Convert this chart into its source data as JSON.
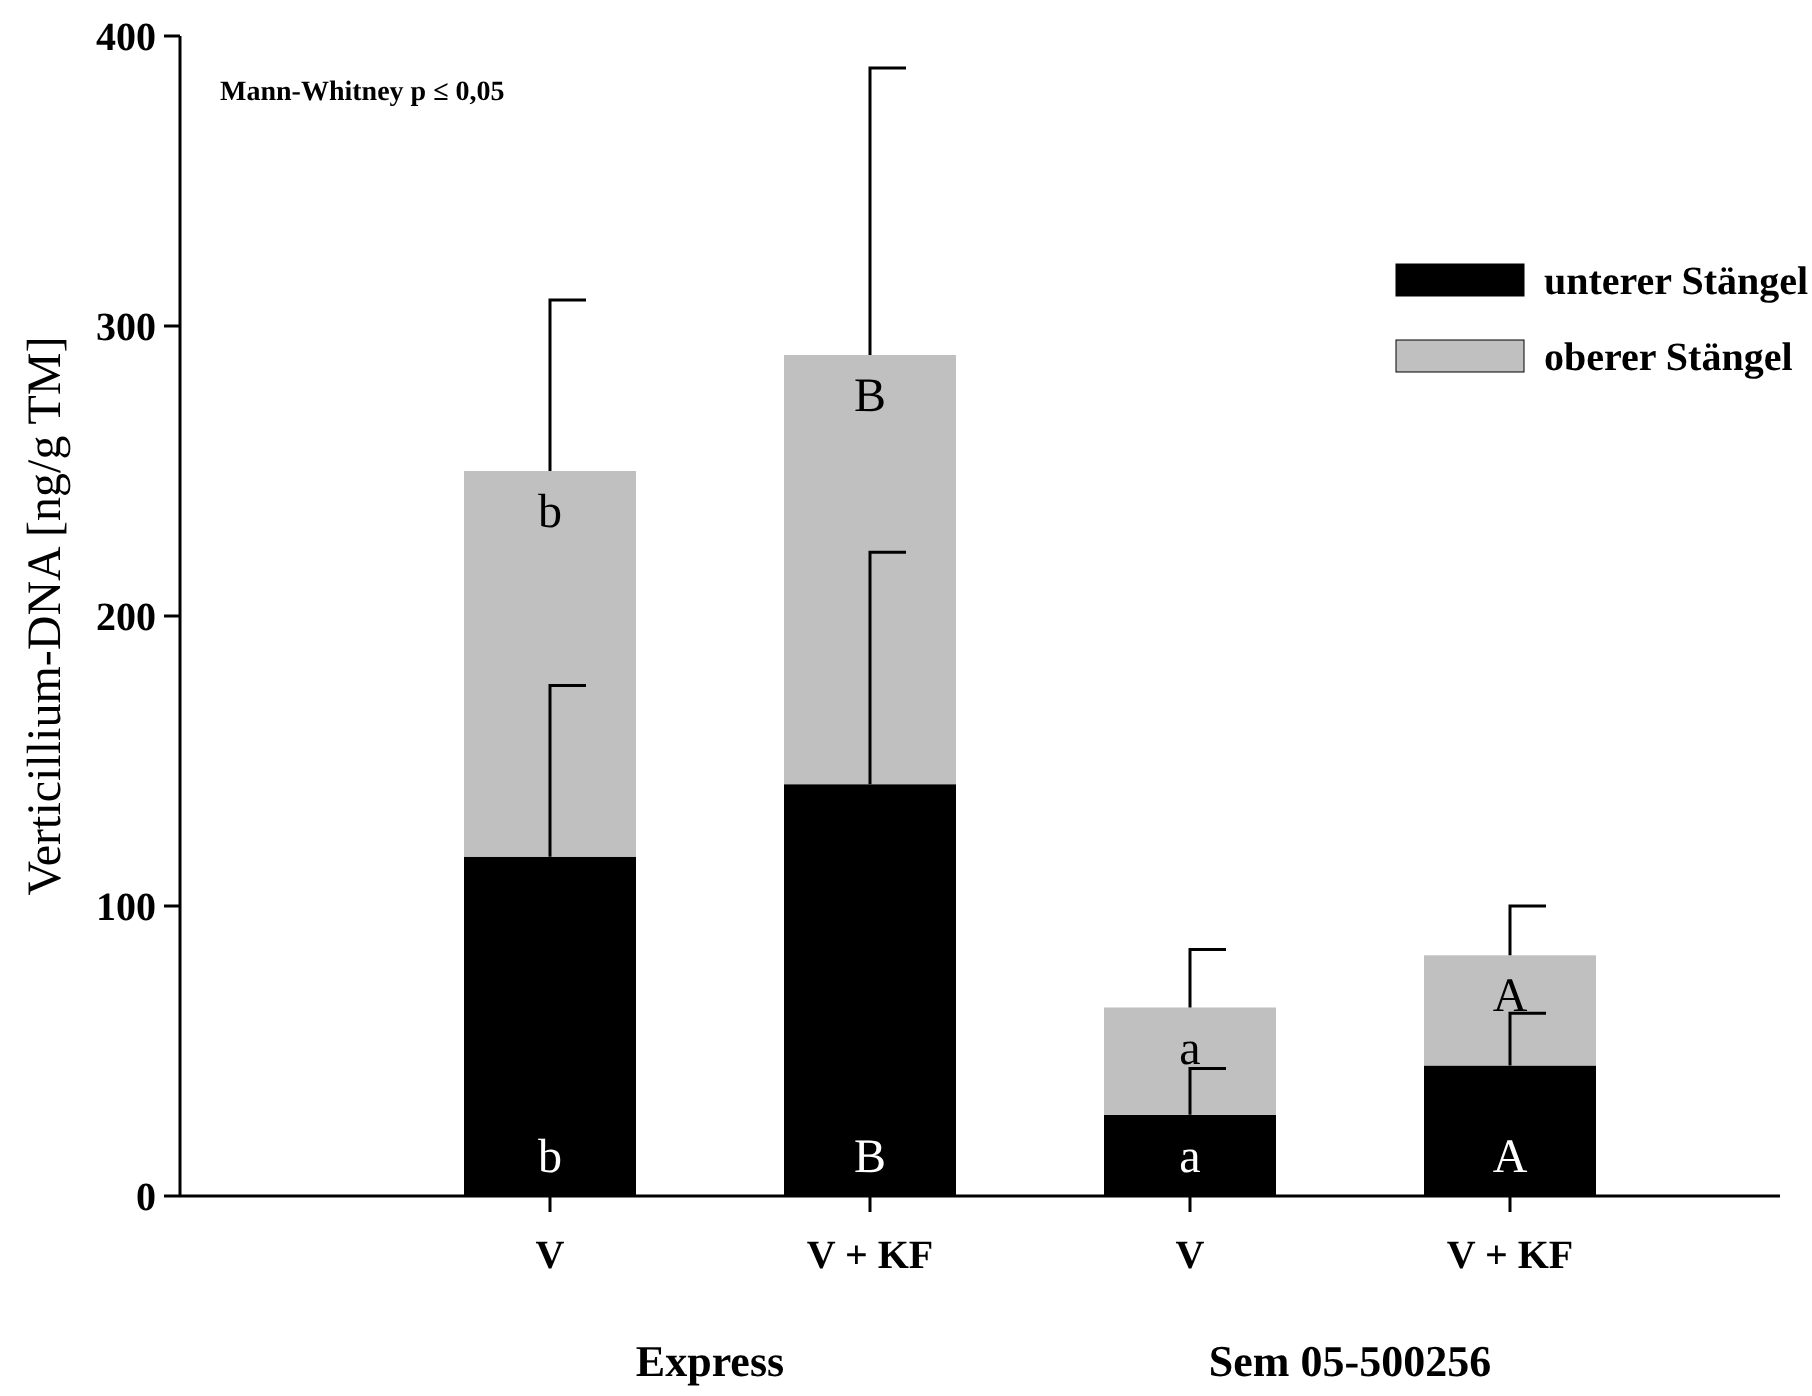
{
  "chart_data": {
    "type": "bar",
    "stacked": true,
    "ylabel": "Verticillium-DNA [ng/g TM]",
    "categories": [
      "V",
      "V + KF",
      "V",
      "V + KF"
    ],
    "series": [
      {
        "name": "unterer Stängel",
        "color": "#000000",
        "values": [
          117,
          142,
          28,
          45
        ],
        "errors": [
          [
            117,
            176
          ],
          [
            142,
            222
          ],
          [
            28,
            44
          ],
          [
            45,
            63
          ]
        ]
      },
      {
        "name": "oberer Stängel",
        "color": "#c0c0c0",
        "values": [
          133,
          148,
          37,
          38
        ],
        "errors": [
          [
            250,
            309
          ],
          [
            290,
            389
          ],
          [
            65,
            85
          ],
          [
            83,
            100
          ]
        ]
      }
    ],
    "ylim": [
      0,
      400
    ],
    "yticks": [
      0,
      100,
      200,
      300,
      400
    ],
    "legend": "top right",
    "annotations": [
      "Mann-Whitney p ≤ 0,05",
      "Express",
      "Sem 05-500256",
      "b",
      "b",
      "B",
      "B",
      "a",
      "a",
      "A",
      "A"
    ]
  }
}
